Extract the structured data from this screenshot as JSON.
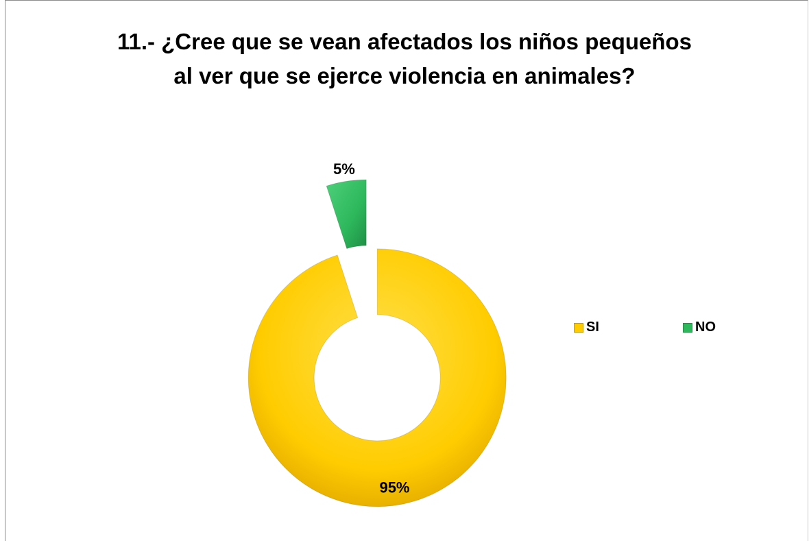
{
  "chart_data": {
    "type": "pie",
    "variant": "doughnut",
    "title": "11.- ¿Cree que se vean afectados los niños pequeños al ver que se ejerce violencia en animales?",
    "categories": [
      "SI",
      "NO"
    ],
    "values": [
      95,
      5
    ],
    "labels": [
      "95%",
      "5%"
    ],
    "colors": [
      "#FFCC00",
      "#2EB85C"
    ],
    "exploded": [
      "SI",
      "NO"
    ],
    "legend_position": "right"
  }
}
